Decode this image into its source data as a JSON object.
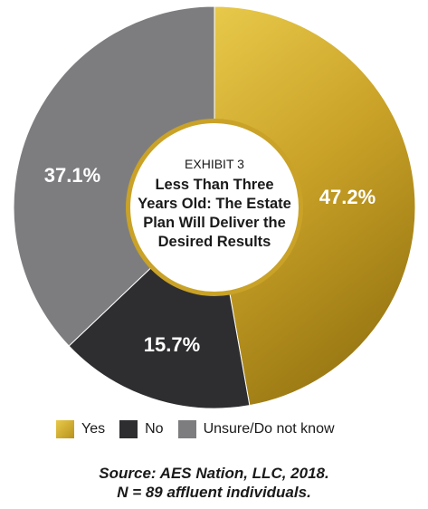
{
  "chart_data": {
    "type": "pie",
    "donut": true,
    "title_prefix": "EXHIBIT 3",
    "title_lines": [
      "Less Than Three",
      "Years Old: The Estate",
      "Plan Will Deliver the",
      "Desired Results"
    ],
    "categories": [
      "Yes",
      "No",
      "Unsure/Do not know"
    ],
    "values": [
      47.2,
      15.7,
      37.1
    ],
    "value_labels": [
      "47.2%",
      "15.7%",
      "37.1%"
    ],
    "colors": [
      "#c9a227",
      "#2e2e30",
      "#7d7d80"
    ],
    "legend_position": "bottom"
  },
  "source": {
    "line1": "Source: AES Nation, LLC, 2018.",
    "line2": "N = 89 affluent individuals."
  }
}
